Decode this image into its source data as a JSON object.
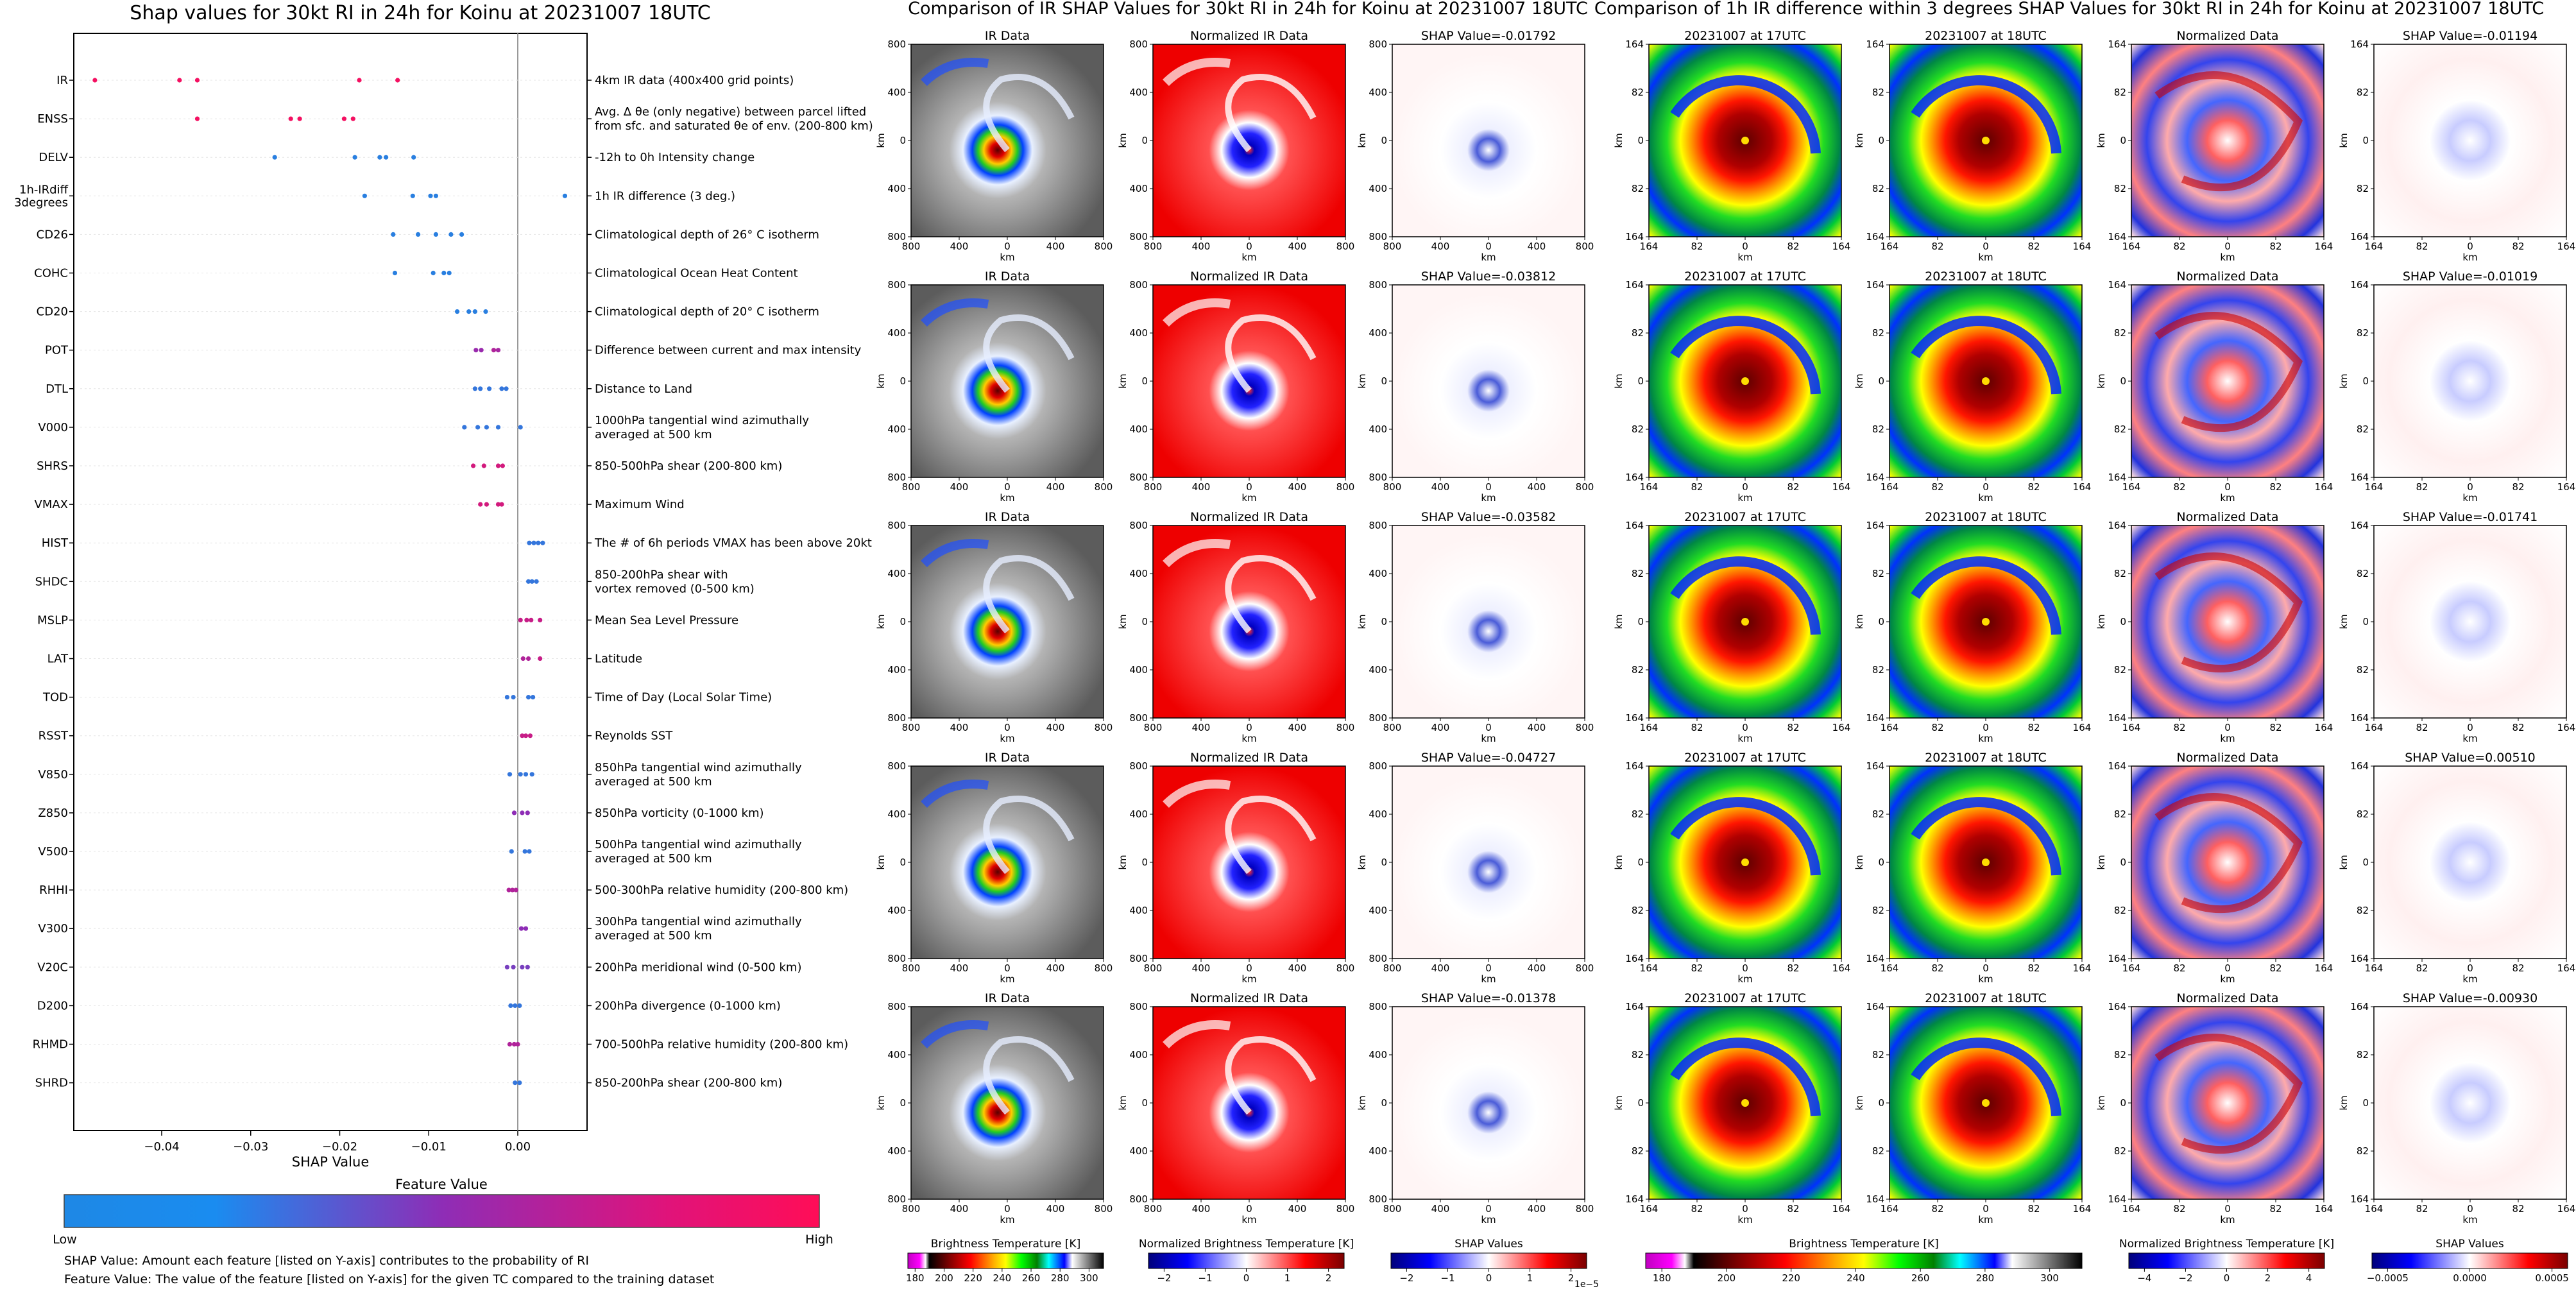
{
  "shap_chart": {
    "title": "Shap values for 30kt RI in 24h for Koinu at 20231007 18UTC",
    "xlabel": "SHAP Value",
    "x_ticks": [
      "−0.04",
      "−0.03",
      "−0.02",
      "−0.01",
      "0.00"
    ],
    "colorbar_title": "Feature Value",
    "colorbar_low": "Low",
    "colorbar_high": "High",
    "footnote_1": "SHAP Value: Amount each feature [listed on Y-axis] contributes to the probability of RI",
    "footnote_2": "Feature Value: The value of the feature [listed on Y-axis] for the given TC compared to the training dataset",
    "colors": {
      "low": "#1E88E5",
      "mid": "#8E2DB6",
      "high": "#FF0D57"
    }
  },
  "panel_group_1": {
    "title": "Comparison of IR SHAP Values for 30kt RI in 24h for Koinu at 20231007 18UTC",
    "col_titles": [
      "IR Data",
      "Normalized IR Data"
    ],
    "shap_titles": [
      "SHAP Value=-0.01792",
      "SHAP Value=-0.03812",
      "SHAP Value=-0.03582",
      "SHAP Value=-0.04727",
      "SHAP Value=-0.01378"
    ],
    "axis_label": "km",
    "ticks": [
      "800",
      "400",
      "0",
      "400",
      "800"
    ]
  },
  "panel_group_2": {
    "title": "Comparison of 1h IR difference within 3 degrees SHAP Values for 30kt RI in 24h for Koinu at 20231007 18UTC",
    "col_titles": [
      "20231007 at 17UTC",
      "20231007 at 18UTC",
      "Normalized Data"
    ],
    "shap_titles": [
      "SHAP Value=-0.01194",
      "SHAP Value=-0.01019",
      "SHAP Value=-0.01741",
      "SHAP Value=0.00510",
      "SHAP Value=-0.00930"
    ],
    "axis_label": "km",
    "ticks": [
      "164",
      "82",
      "0",
      "82",
      "164"
    ]
  },
  "colorbars": [
    {
      "title": "Brightness Temperature [K]",
      "ticks": [
        "180",
        "200",
        "220",
        "240",
        "260",
        "280",
        "300"
      ],
      "multiplier": ""
    },
    {
      "title": "Normalized Brightness Temperature [K]",
      "ticks": [
        "−2",
        "−1",
        "0",
        "1",
        "2"
      ],
      "multiplier": ""
    },
    {
      "title": "SHAP Values",
      "ticks": [
        "−2",
        "−1",
        "0",
        "1",
        "2"
      ],
      "multiplier": "1e−5"
    },
    {
      "title": "Brightness Temperature [K]",
      "ticks": [
        "180",
        "200",
        "220",
        "240",
        "260",
        "280",
        "300"
      ],
      "multiplier": ""
    },
    {
      "title": "Normalized Brightness Temperature [K]",
      "ticks": [
        "−4",
        "−2",
        "0",
        "2",
        "4"
      ],
      "multiplier": ""
    },
    {
      "title": "SHAP Values",
      "ticks": [
        "−0.0005",
        "0.0000",
        "0.0005"
      ],
      "multiplier": ""
    }
  ],
  "chart_data": {
    "type": "scatter",
    "title": "Shap values for 30kt RI in 24h for Koinu at 20231007 18UTC",
    "xlabel": "SHAP Value",
    "xlim": [
      -0.05,
      0.0075
    ],
    "features": [
      {
        "name": "IR",
        "desc": "4km IR data (400x400 grid points)",
        "x": [
          -0.0475,
          -0.038,
          -0.036,
          -0.0178,
          -0.0135
        ],
        "fv": [
          0.95,
          0.95,
          0.95,
          0.95,
          0.95
        ]
      },
      {
        "name": "ENSS",
        "desc": "Avg. Δ θe (only negative) between parcel lifted\nfrom sfc. and saturated θe of env. (200-800 km)",
        "x": [
          -0.036,
          -0.0255,
          -0.0245,
          -0.0195,
          -0.0185
        ],
        "fv": [
          0.95,
          0.95,
          0.95,
          0.95,
          0.95
        ]
      },
      {
        "name": "DELV",
        "desc": "-12h to 0h Intensity change",
        "x": [
          -0.0273,
          -0.0183,
          -0.0155,
          -0.0148,
          -0.0117
        ],
        "fv": [
          0.05,
          0.05,
          0.05,
          0.05,
          0.05
        ]
      },
      {
        "name": "1h-IRdiff\n3degrees",
        "desc": "1h IR difference (3 deg.)",
        "x": [
          -0.0172,
          -0.0118,
          -0.0098,
          -0.0092,
          0.0053
        ],
        "fv": [
          0.05,
          0.05,
          0.05,
          0.05,
          0.05
        ]
      },
      {
        "name": "CD26",
        "desc": "Climatological depth of 26° C isotherm",
        "x": [
          -0.014,
          -0.0112,
          -0.0092,
          -0.0075,
          -0.0063
        ],
        "fv": [
          0.05,
          0.05,
          0.05,
          0.05,
          0.05
        ]
      },
      {
        "name": "COHC",
        "desc": "Climatological Ocean Heat Content",
        "x": [
          -0.0138,
          -0.0095,
          -0.0083,
          -0.0077
        ],
        "fv": [
          0.05,
          0.05,
          0.05,
          0.05
        ]
      },
      {
        "name": "CD20",
        "desc": "Climatological depth of 20° C isotherm",
        "x": [
          -0.0068,
          -0.0055,
          -0.0048,
          -0.0036
        ],
        "fv": [
          0.05,
          0.05,
          0.05,
          0.05
        ]
      },
      {
        "name": "POT",
        "desc": "Difference between current and max intensity",
        "x": [
          -0.0047,
          -0.0041,
          -0.0027,
          -0.0022
        ],
        "fv": [
          0.55,
          0.55,
          0.65,
          0.6
        ]
      },
      {
        "name": "DTL",
        "desc": "Distance to Land",
        "x": [
          -0.0048,
          -0.0042,
          -0.0032,
          -0.0018,
          -0.0013
        ],
        "fv": [
          0.1,
          0.1,
          0.1,
          0.1,
          0.1
        ]
      },
      {
        "name": "V000",
        "desc": "1000hPa tangential wind azimuthally\naveraged at 500 km",
        "x": [
          -0.006,
          -0.0045,
          -0.0035,
          -0.0022,
          0.0003
        ],
        "fv": [
          0.1,
          0.1,
          0.1,
          0.1,
          0.1
        ]
      },
      {
        "name": "SHRS",
        "desc": "850-500hPa shear (200-800 km)",
        "x": [
          -0.005,
          -0.0038,
          -0.0022,
          -0.0017
        ],
        "fv": [
          0.8,
          0.8,
          0.8,
          0.8
        ]
      },
      {
        "name": "VMAX",
        "desc": "Maximum Wind",
        "x": [
          -0.0042,
          -0.0035,
          -0.0022,
          -0.0018
        ],
        "fv": [
          0.8,
          0.8,
          0.8,
          0.8
        ]
      },
      {
        "name": "HIST",
        "desc": "The # of 6h periods VMAX has been above 20kt",
        "x": [
          0.0013,
          0.0018,
          0.0023,
          0.0028
        ],
        "fv": [
          0.1,
          0.1,
          0.1,
          0.1
        ]
      },
      {
        "name": "SHDC",
        "desc": "850-200hPa shear with\nvortex removed (0-500 km)",
        "x": [
          0.0012,
          0.0016,
          0.0021
        ],
        "fv": [
          0.1,
          0.1,
          0.1
        ]
      },
      {
        "name": "MSLP",
        "desc": "Mean Sea Level Pressure",
        "x": [
          0.0003,
          0.001,
          0.0015,
          0.0025
        ],
        "fv": [
          0.75,
          0.75,
          0.75,
          0.75
        ]
      },
      {
        "name": "LAT",
        "desc": "Latitude",
        "x": [
          0.0006,
          0.0012,
          0.0025
        ],
        "fv": [
          0.65,
          0.65,
          0.75
        ]
      },
      {
        "name": "TOD",
        "desc": "Time of Day (Local Solar Time)",
        "x": [
          -0.0012,
          -0.0005,
          0.0012,
          0.0017
        ],
        "fv": [
          0.1,
          0.1,
          0.1,
          0.1
        ]
      },
      {
        "name": "RSST",
        "desc": "Reynolds SST",
        "x": [
          0.0005,
          0.0009,
          0.0014
        ],
        "fv": [
          0.75,
          0.75,
          0.75
        ]
      },
      {
        "name": "V850",
        "desc": "850hPa tangential wind azimuthally\naveraged at 500 km",
        "x": [
          -0.0009,
          0.0003,
          0.0009,
          0.0016
        ],
        "fv": [
          0.1,
          0.1,
          0.1,
          0.1
        ]
      },
      {
        "name": "Z850",
        "desc": "850hPa vorticity (0-1000 km)",
        "x": [
          -0.0004,
          0.0005,
          0.0011
        ],
        "fv": [
          0.5,
          0.5,
          0.5
        ]
      },
      {
        "name": "V500",
        "desc": "500hPa tangential wind azimuthally\naveraged at 500 km",
        "x": [
          -0.0007,
          0.0008,
          0.0013
        ],
        "fv": [
          0.1,
          0.1,
          0.1
        ]
      },
      {
        "name": "RHHI",
        "desc": "500-300hPa relative humidity (200-800 km)",
        "x": [
          -0.001,
          -0.0006,
          -0.0002
        ],
        "fv": [
          0.65,
          0.65,
          0.65
        ]
      },
      {
        "name": "V300",
        "desc": "300hPa tangential wind azimuthally\naveraged at 500 km",
        "x": [
          0.0004,
          0.0009
        ],
        "fv": [
          0.5,
          0.5
        ]
      },
      {
        "name": "V20C",
        "desc": "200hPa meridional wind (0-500 km)",
        "x": [
          -0.0012,
          -0.0005,
          0.0005,
          0.0011
        ],
        "fv": [
          0.4,
          0.4,
          0.4,
          0.4
        ]
      },
      {
        "name": "D200",
        "desc": "200hPa divergence (0-1000 km)",
        "x": [
          -0.0008,
          -0.0003,
          0.0002
        ],
        "fv": [
          0.1,
          0.1,
          0.1
        ]
      },
      {
        "name": "RHMD",
        "desc": "700-500hPa relative humidity (200-800 km)",
        "x": [
          -0.0009,
          -0.0004,
          0.0
        ],
        "fv": [
          0.65,
          0.65,
          0.65
        ]
      },
      {
        "name": "SHRD",
        "desc": "850-200hPa shear (200-800 km)",
        "x": [
          -0.0003,
          0.0002
        ],
        "fv": [
          0.1,
          0.1
        ]
      }
    ]
  }
}
